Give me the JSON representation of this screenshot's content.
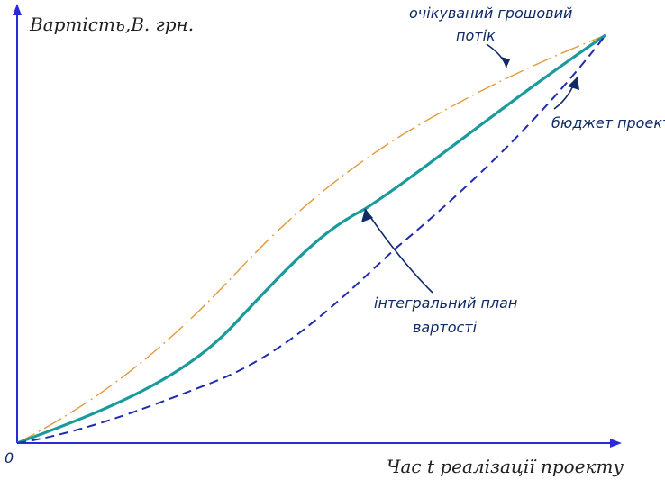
{
  "diagram": {
    "y_axis_title": "Вартість,В. грн.",
    "x_axis_title": "Час t реалізації проекту",
    "origin_label": "0",
    "labels": {
      "expected_flow_line1": "очікуваний грошовий",
      "expected_flow_line2": "потік",
      "budget": "бюджет проекту",
      "integral_line1": "інтегральний план",
      "integral_line2": "вартості"
    },
    "colors": {
      "axes": "#2a2ad9",
      "expected_flow": "#e39a3a",
      "integral_plan": "#1b9a9e",
      "budget": "#1f2bb0",
      "pointers": "#0f2a66"
    }
  }
}
